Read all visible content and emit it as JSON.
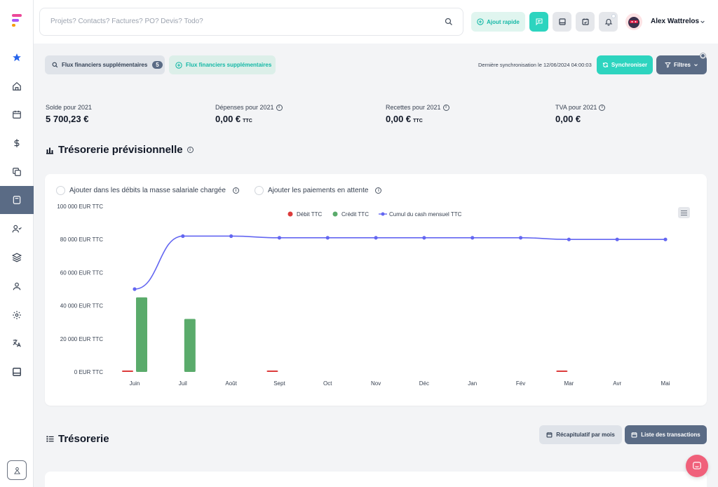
{
  "header": {
    "search_placeholder": "Projets? Contacts? Factures? PO? Devis? Todo?",
    "quick_add_label": "Ajout rapide",
    "user_name": "Alex Wattrelos"
  },
  "toolbar": {
    "flux_filter_label": "Flux financiers supplémentaires",
    "flux_filter_count": "5",
    "flux_add_label": "Flux financiers supplémentaires",
    "sync_text": "Dernière synchronisation le 12/06/2024 04:00:03",
    "sync_button": "Synchroniser",
    "filters_button": "Filtres"
  },
  "kpis": [
    {
      "label": "Solde pour 2021",
      "value": "5 700,23 €",
      "suffix": ""
    },
    {
      "label": "Dépenses pour 2021",
      "value": "0,00 €",
      "suffix": "TTC"
    },
    {
      "label": "Recettes pour 2021",
      "value": "0,00 €",
      "suffix": "TTC"
    },
    {
      "label": "TVA pour 2021",
      "value": "0,00 €",
      "suffix": ""
    }
  ],
  "forecast_section": {
    "title": "Trésorerie prévisionnelle",
    "option_payroll": "Ajouter dans les débits la masse salariale chargée",
    "option_pending": "Ajouter les paiements en attente"
  },
  "chart_data": {
    "type": "bar",
    "categories": [
      "Juin",
      "Juil",
      "Août",
      "Sept",
      "Oct",
      "Nov",
      "Déc",
      "Jan",
      "Fév",
      "Mar",
      "Avr",
      "Mai"
    ],
    "y_tick_labels": [
      "0 EUR TTC",
      "20 000 EUR TTC",
      "40 000 EUR TTC",
      "60 000 EUR TTC",
      "80 000 EUR TTC",
      "100 000 EUR TTC"
    ],
    "ylim": [
      0,
      100000
    ],
    "legend_position": "top-center",
    "series": [
      {
        "name": "Débit TTC",
        "kind": "bar",
        "color": "#dc3b3b",
        "values": [
          600,
          0,
          0,
          600,
          0,
          0,
          0,
          0,
          0,
          600,
          0,
          0
        ]
      },
      {
        "name": "Crédit TTC",
        "kind": "bar",
        "color": "#5aab6b",
        "values": [
          45000,
          32000,
          0,
          0,
          0,
          0,
          0,
          0,
          0,
          0,
          0,
          0
        ]
      },
      {
        "name": "Cumul du cash mensuel TTC",
        "kind": "line",
        "color": "#6366f1",
        "values": [
          50000,
          82000,
          82000,
          81000,
          81000,
          81000,
          81000,
          81000,
          81000,
          80000,
          80000,
          80000
        ]
      }
    ]
  },
  "treasury_section": {
    "title": "Trésorerie",
    "recap_button": "Récapitulatif par mois",
    "transactions_button": "Liste des transactions"
  },
  "colors": {
    "accent_teal": "#2dd4bf",
    "slate": "#5a6b85",
    "chat": "#f0607a"
  }
}
